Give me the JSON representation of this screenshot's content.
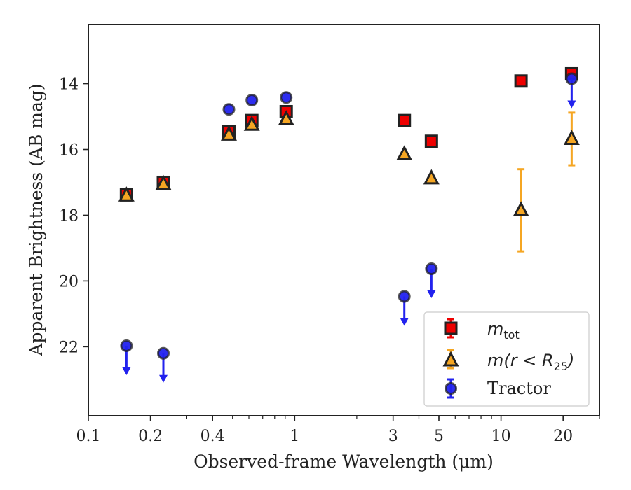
{
  "chart_data": {
    "type": "scatter",
    "xlabel": "Observed-frame Wavelength (μm)",
    "ylabel": "Apparent Brightness (AB mag)",
    "xscale": "log",
    "yaxis_inverted": true,
    "xlim": [
      0.1,
      30
    ],
    "ylim": [
      24.1,
      12.2
    ],
    "xticks": [
      {
        "value": 0.1,
        "label": "0.1"
      },
      {
        "value": 0.2,
        "label": "0.2"
      },
      {
        "value": 0.4,
        "label": "0.4"
      },
      {
        "value": 1,
        "label": "1"
      },
      {
        "value": 3,
        "label": "3"
      },
      {
        "value": 5,
        "label": "5"
      },
      {
        "value": 10,
        "label": "10"
      },
      {
        "value": 20,
        "label": "20"
      }
    ],
    "yticks": [
      {
        "value": 14,
        "label": "14"
      },
      {
        "value": 16,
        "label": "16"
      },
      {
        "value": 18,
        "label": "18"
      },
      {
        "value": 20,
        "label": "20"
      },
      {
        "value": 22,
        "label": "22"
      }
    ],
    "legend_position": "lower-right",
    "colors": {
      "total": "#ee0000",
      "r25": "#f5a623",
      "tractor": "#2222ee",
      "edge": "#222222"
    },
    "series": [
      {
        "name_main": "m",
        "name_sub": "tot",
        "marker": "square",
        "color": "#ee0000",
        "points": [
          {
            "x": 0.153,
            "y": 17.38
          },
          {
            "x": 0.231,
            "y": 17.0
          },
          {
            "x": 0.48,
            "y": 15.45
          },
          {
            "x": 0.62,
            "y": 15.12
          },
          {
            "x": 0.91,
            "y": 14.85
          },
          {
            "x": 3.4,
            "y": 15.12
          },
          {
            "x": 4.6,
            "y": 15.75
          },
          {
            "x": 12.5,
            "y": 13.92
          },
          {
            "x": 22.0,
            "y": 13.7
          }
        ]
      },
      {
        "name_main": "m(r < R",
        "name_sub": "25",
        "name_end": ")",
        "marker": "triangle",
        "color": "#f5a623",
        "points": [
          {
            "x": 0.153,
            "y": 17.4
          },
          {
            "x": 0.231,
            "y": 17.05
          },
          {
            "x": 0.48,
            "y": 15.55
          },
          {
            "x": 0.62,
            "y": 15.25
          },
          {
            "x": 0.91,
            "y": 15.08
          },
          {
            "x": 3.4,
            "y": 16.15
          },
          {
            "x": 4.6,
            "y": 16.88
          },
          {
            "x": 12.5,
            "y": 17.85,
            "yerr": 1.25
          },
          {
            "x": 22.0,
            "y": 15.68,
            "yerr": 0.8
          }
        ]
      },
      {
        "name": "Tractor",
        "marker": "circle",
        "color": "#2222ee",
        "points": [
          {
            "x": 0.153,
            "y": 21.97,
            "upper_limit": true
          },
          {
            "x": 0.231,
            "y": 22.2,
            "upper_limit": true
          },
          {
            "x": 0.48,
            "y": 14.78
          },
          {
            "x": 0.62,
            "y": 14.5
          },
          {
            "x": 0.91,
            "y": 14.42
          },
          {
            "x": 3.4,
            "y": 20.47,
            "upper_limit": true
          },
          {
            "x": 4.6,
            "y": 19.63,
            "upper_limit": true
          },
          {
            "x": 22.0,
            "y": 13.85,
            "upper_limit": true
          }
        ]
      }
    ]
  }
}
